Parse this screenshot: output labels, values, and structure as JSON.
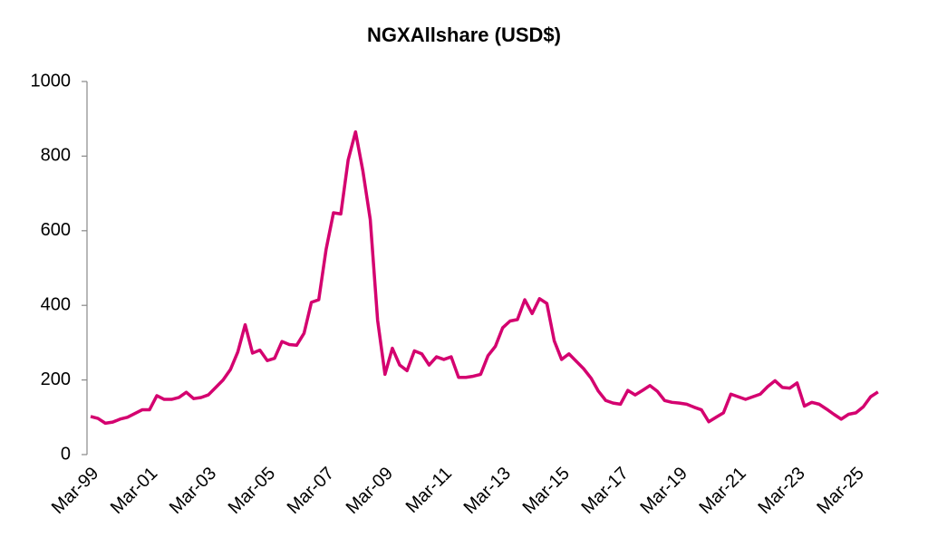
{
  "chart_data": {
    "type": "line",
    "title": "NGXAllshare (USD$)",
    "categories": [
      "Mar-99",
      null,
      null,
      null,
      null,
      null,
      null,
      null,
      "Mar-01",
      null,
      null,
      null,
      null,
      null,
      null,
      null,
      "Mar-03",
      null,
      null,
      null,
      null,
      null,
      null,
      null,
      "Mar-05",
      null,
      null,
      null,
      null,
      null,
      null,
      null,
      "Mar-07",
      null,
      null,
      null,
      null,
      null,
      null,
      null,
      "Mar-09",
      null,
      null,
      null,
      null,
      null,
      null,
      null,
      "Mar-11",
      null,
      null,
      null,
      null,
      null,
      null,
      null,
      "Mar-13",
      null,
      null,
      null,
      null,
      null,
      null,
      null,
      "Mar-15",
      null,
      null,
      null,
      null,
      null,
      null,
      null,
      "Mar-17",
      null,
      null,
      null,
      null,
      null,
      null,
      null,
      "Mar-19",
      null,
      null,
      null,
      null,
      null,
      null,
      null,
      "Mar-21",
      null,
      null,
      null,
      null,
      null,
      null,
      null,
      "Mar-23",
      null,
      null,
      null,
      null,
      null,
      null,
      null,
      "Mar-25",
      null,
      null,
      null
    ],
    "series": [
      {
        "name": "NGXAllshare (USD$)",
        "color": "#d4006f",
        "values": [
          102,
          97,
          84,
          87,
          95,
          100,
          110,
          120,
          120,
          158,
          148,
          148,
          153,
          167,
          150,
          153,
          160,
          180,
          200,
          228,
          275,
          348,
          272,
          280,
          252,
          258,
          303,
          295,
          293,
          325,
          408,
          415,
          550,
          648,
          645,
          790,
          865,
          760,
          630,
          360,
          215,
          285,
          240,
          225,
          278,
          270,
          240,
          262,
          255,
          262,
          207,
          207,
          210,
          215,
          265,
          290,
          340,
          358,
          362,
          415,
          378,
          418,
          405,
          305,
          255,
          270,
          250,
          230,
          205,
          170,
          145,
          138,
          135,
          172,
          160,
          172,
          185,
          170,
          145,
          140,
          138,
          135,
          127,
          120,
          88,
          100,
          112,
          162,
          155,
          148,
          155,
          162,
          182,
          198,
          180,
          178,
          192,
          130,
          140,
          135,
          122,
          108,
          95,
          108,
          112,
          128,
          155,
          168
        ]
      }
    ],
    "ylim": [
      0,
      1000
    ],
    "yticks": [
      0,
      200,
      400,
      600,
      800,
      1000
    ],
    "grid": false
  }
}
